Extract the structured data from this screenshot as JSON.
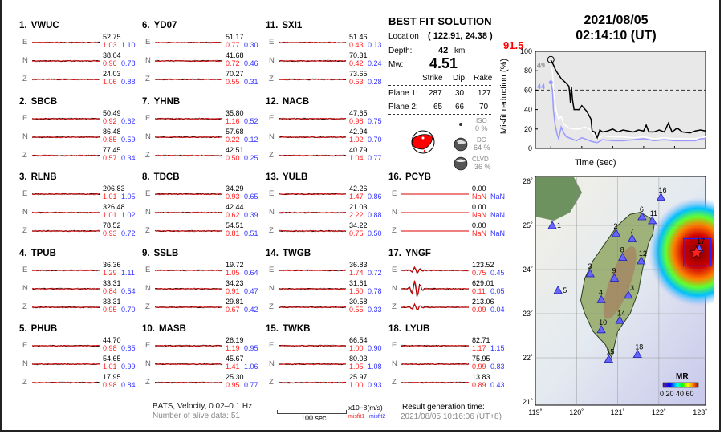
{
  "stations": [
    {
      "num": "1.",
      "name": "VWUC",
      "comps": [
        {
          "label": "E",
          "amp": "52.75",
          "m1": "1.03",
          "m2": "1.10"
        },
        {
          "label": "N",
          "amp": "38.04",
          "m1": "0.96",
          "m2": "0.78"
        },
        {
          "label": "Z",
          "amp": "24.03",
          "m1": "1.06",
          "m2": "0.88"
        }
      ]
    },
    {
      "num": "2.",
      "name": "SBCB",
      "comps": [
        {
          "label": "E",
          "amp": "50.49",
          "m1": "0.92",
          "m2": "0.62"
        },
        {
          "label": "N",
          "amp": "86.48",
          "m1": "0.85",
          "m2": "0.59"
        },
        {
          "label": "Z",
          "amp": "77.45",
          "m1": "0.57",
          "m2": "0.34"
        }
      ]
    },
    {
      "num": "3.",
      "name": "RLNB",
      "comps": [
        {
          "label": "E",
          "amp": "206.83",
          "m1": "1.01",
          "m2": "1.05"
        },
        {
          "label": "N",
          "amp": "326.48",
          "m1": "1.01",
          "m2": "1.02"
        },
        {
          "label": "Z",
          "amp": "78.52",
          "m1": "0.93",
          "m2": "0.72"
        }
      ]
    },
    {
      "num": "4.",
      "name": "TPUB",
      "comps": [
        {
          "label": "E",
          "amp": "36.36",
          "m1": "1.29",
          "m2": "1.11"
        },
        {
          "label": "N",
          "amp": "33.31",
          "m1": "0.84",
          "m2": "0.54"
        },
        {
          "label": "Z",
          "amp": "33.31",
          "m1": "0.95",
          "m2": "0.70"
        }
      ]
    },
    {
      "num": "5.",
      "name": "PHUB",
      "comps": [
        {
          "label": "E",
          "amp": "44.70",
          "m1": "0.98",
          "m2": "0.85"
        },
        {
          "label": "N",
          "amp": "54.65",
          "m1": "1.01",
          "m2": "0.99"
        },
        {
          "label": "Z",
          "amp": "17.95",
          "m1": "0.98",
          "m2": "0.84"
        }
      ]
    },
    {
      "num": "6.",
      "name": "YD07",
      "comps": [
        {
          "label": "E",
          "amp": "51.17",
          "m1": "0.77",
          "m2": "0.30"
        },
        {
          "label": "N",
          "amp": "41.68",
          "m1": "0.72",
          "m2": "0.46"
        },
        {
          "label": "Z",
          "amp": "70.27",
          "m1": "0.55",
          "m2": "0.31"
        }
      ]
    },
    {
      "num": "7.",
      "name": "YHNB",
      "comps": [
        {
          "label": "E",
          "amp": "35.80",
          "m1": "1.16",
          "m2": "0.52"
        },
        {
          "label": "N",
          "amp": "57.68",
          "m1": "0.22",
          "m2": "0.12"
        },
        {
          "label": "Z",
          "amp": "42.51",
          "m1": "0.50",
          "m2": "0.25"
        }
      ]
    },
    {
      "num": "8.",
      "name": "TDCB",
      "comps": [
        {
          "label": "E",
          "amp": "34.29",
          "m1": "0.93",
          "m2": "0.65"
        },
        {
          "label": "N",
          "amp": "42.44",
          "m1": "0.62",
          "m2": "0.39"
        },
        {
          "label": "Z",
          "amp": "54.51",
          "m1": "0.81",
          "m2": "0.51"
        }
      ]
    },
    {
      "num": "9.",
      "name": "SSLB",
      "comps": [
        {
          "label": "E",
          "amp": "19.72",
          "m1": "1.05",
          "m2": "0.64"
        },
        {
          "label": "N",
          "amp": "34.23",
          "m1": "0.91",
          "m2": "0.47"
        },
        {
          "label": "Z",
          "amp": "29.81",
          "m1": "0.67",
          "m2": "0.42"
        }
      ]
    },
    {
      "num": "10.",
      "name": "MASB",
      "comps": [
        {
          "label": "E",
          "amp": "26.19",
          "m1": "1.19",
          "m2": "0.95"
        },
        {
          "label": "N",
          "amp": "45.67",
          "m1": "1.41",
          "m2": "1.06"
        },
        {
          "label": "Z",
          "amp": "25.30",
          "m1": "0.95",
          "m2": "0.77"
        }
      ]
    },
    {
      "num": "11.",
      "name": "SXI1",
      "comps": [
        {
          "label": "E",
          "amp": "51.46",
          "m1": "0.43",
          "m2": "0.13"
        },
        {
          "label": "N",
          "amp": "70.31",
          "m1": "0.42",
          "m2": "0.24"
        },
        {
          "label": "Z",
          "amp": "73.65",
          "m1": "0.63",
          "m2": "0.28"
        }
      ]
    },
    {
      "num": "12.",
      "name": "NACB",
      "comps": [
        {
          "label": "E",
          "amp": "47.65",
          "m1": "0.98",
          "m2": "0.75"
        },
        {
          "label": "N",
          "amp": "42.94",
          "m1": "1.02",
          "m2": "0.70"
        },
        {
          "label": "Z",
          "amp": "40.79",
          "m1": "1.04",
          "m2": "0.77"
        }
      ]
    },
    {
      "num": "13.",
      "name": "YULB",
      "comps": [
        {
          "label": "E",
          "amp": "42.26",
          "m1": "1.47",
          "m2": "0.86"
        },
        {
          "label": "N",
          "amp": "21.03",
          "m1": "2.22",
          "m2": "0.88"
        },
        {
          "label": "Z",
          "amp": "34.22",
          "m1": "0.75",
          "m2": "0.50"
        }
      ]
    },
    {
      "num": "14.",
      "name": "TWGB",
      "comps": [
        {
          "label": "E",
          "amp": "36.83",
          "m1": "1.74",
          "m2": "0.72"
        },
        {
          "label": "N",
          "amp": "31.61",
          "m1": "1.50",
          "m2": "0.78"
        },
        {
          "label": "Z",
          "amp": "30.58",
          "m1": "0.55",
          "m2": "0.33"
        }
      ]
    },
    {
      "num": "15.",
      "name": "TWKB",
      "comps": [
        {
          "label": "E",
          "amp": "66.54",
          "m1": "1.00",
          "m2": "0.90"
        },
        {
          "label": "N",
          "amp": "80.03",
          "m1": "1.05",
          "m2": "1.08"
        },
        {
          "label": "Z",
          "amp": "25.97",
          "m1": "1.00",
          "m2": "0.93"
        }
      ]
    },
    {
      "num": "16.",
      "name": "PCYB",
      "comps": [
        {
          "label": "E",
          "amp": "0.00",
          "m1": "NaN",
          "m2": "NaN"
        },
        {
          "label": "N",
          "amp": "0.00",
          "m1": "NaN",
          "m2": "NaN"
        },
        {
          "label": "Z",
          "amp": "0.00",
          "m1": "NaN",
          "m2": "NaN"
        }
      ]
    },
    {
      "num": "17.",
      "name": "YNGF",
      "comps": [
        {
          "label": "E",
          "amp": "123.52",
          "m1": "0.75",
          "m2": "0.45"
        },
        {
          "label": "N",
          "amp": "629.01",
          "m1": "0.11",
          "m2": "0.05"
        },
        {
          "label": "Z",
          "amp": "213.06",
          "m1": "0.09",
          "m2": "0.04"
        }
      ]
    },
    {
      "num": "18.",
      "name": "LYUB",
      "comps": [
        {
          "label": "E",
          "amp": "82.71",
          "m1": "1.17",
          "m2": "1.15"
        },
        {
          "label": "N",
          "amp": "75.95",
          "m1": "0.99",
          "m2": "0.83"
        },
        {
          "label": "Z",
          "amp": "13.83",
          "m1": "0.89",
          "m2": "0.43"
        }
      ]
    }
  ],
  "solution": {
    "title": "BEST FIT SOLUTION",
    "location_label": "Location",
    "location_value": "( 122.91,  24.38 )",
    "depth_label": "Depth:",
    "depth_value": "42",
    "depth_unit": "km",
    "mw_label": "Mw:",
    "mw_value": "4.51",
    "headers": [
      "Strike",
      "Dip",
      "Rake"
    ],
    "planes": [
      {
        "label": "Plane 1:",
        "strike": "287",
        "dip": "30",
        "rake": "127"
      },
      {
        "label": "Plane 2:",
        "strike": "65",
        "dip": "66",
        "rake": "70"
      }
    ],
    "iso_label": "ISO",
    "iso_value": "0 %",
    "dc_label": "DC",
    "dc_value": "64 %",
    "clvd_label": "CLVD",
    "clvd_value": "36 %"
  },
  "event": {
    "date": "2021/08/05",
    "time": "02:14:10  (UT)",
    "best_vr": "91.5"
  },
  "chart_data": {
    "type": "line",
    "xlabel": "Time (sec)",
    "ylabel": "Misfit reduction (%)",
    "xlim": [
      -30,
      300
    ],
    "ylim": [
      0,
      100
    ],
    "xticks": [
      0,
      60,
      120,
      180,
      240,
      300
    ],
    "yticks": [
      0,
      20,
      40,
      60,
      80,
      100
    ],
    "threshold": 60,
    "annotations": {
      "peak": "91.5",
      "gray_label": "49",
      "blue_label": "44"
    },
    "series": [
      {
        "color": "#000000",
        "x": [
          0,
          5,
          10,
          20,
          30,
          35,
          37,
          38,
          40,
          42,
          45,
          55,
          60,
          70,
          78,
          80,
          85,
          90,
          95,
          100,
          110,
          120,
          130,
          140,
          150,
          160,
          170,
          180,
          185,
          190,
          200,
          210,
          220,
          228,
          235,
          245,
          255,
          270,
          280,
          290,
          300
        ],
        "y": [
          91,
          86,
          80,
          72,
          67,
          64,
          55,
          47,
          63,
          50,
          40,
          40,
          44,
          38,
          30,
          18,
          17,
          11,
          19,
          17,
          18,
          20,
          17,
          19,
          18,
          17,
          19,
          18,
          24,
          17,
          17,
          19,
          17,
          26,
          17,
          21,
          17,
          16,
          18,
          19,
          18
        ]
      },
      {
        "color": "#ffffff",
        "x": [
          0,
          3,
          6,
          10,
          15,
          20,
          25,
          35,
          45,
          55,
          65,
          75,
          80,
          90,
          100,
          120,
          140,
          160,
          180,
          200,
          220,
          240,
          260,
          280,
          300
        ],
        "y": [
          85,
          80,
          55,
          40,
          30,
          33,
          25,
          21,
          20,
          20,
          22,
          20,
          17,
          10,
          13,
          12,
          12,
          11,
          12,
          10,
          11,
          10,
          10,
          10,
          12
        ]
      },
      {
        "color": "#9999ff",
        "x": [
          0,
          3,
          5,
          8,
          12,
          15,
          20,
          25,
          30,
          40,
          50,
          60,
          70,
          80,
          90,
          100,
          120,
          140,
          160,
          180,
          200,
          220,
          240,
          260,
          280,
          290,
          300
        ],
        "y": [
          68,
          60,
          40,
          25,
          15,
          10,
          22,
          16,
          12,
          10,
          8,
          11,
          9,
          7,
          6,
          9,
          8,
          8,
          9,
          10,
          8,
          9,
          8,
          8,
          8,
          10,
          10
        ]
      }
    ]
  },
  "map": {
    "lon_ticks": [
      "119˚",
      "120˚",
      "121˚",
      "122˚",
      "123˚"
    ],
    "lat_ticks": [
      "26˚",
      "25˚",
      "24˚",
      "23˚",
      "22˚",
      "21˚"
    ],
    "colorbar_title": "MR",
    "colorbar_ticks": "0 20 40 60",
    "epicenter": {
      "lon": 122.91,
      "lat": 24.38
    },
    "stations": [
      {
        "n": "1",
        "lon": 119.41,
        "lat": 25.0
      },
      {
        "n": "2",
        "lon": 120.96,
        "lat": 24.82
      },
      {
        "n": "3",
        "lon": 120.33,
        "lat": 23.91
      },
      {
        "n": "4",
        "lon": 120.6,
        "lat": 23.32
      },
      {
        "n": "5",
        "lon": 119.55,
        "lat": 23.53
      },
      {
        "n": "6",
        "lon": 121.59,
        "lat": 25.2
      },
      {
        "n": "7",
        "lon": 121.35,
        "lat": 24.7
      },
      {
        "n": "8",
        "lon": 121.12,
        "lat": 24.28
      },
      {
        "n": "9",
        "lon": 120.92,
        "lat": 23.81
      },
      {
        "n": "10",
        "lon": 120.6,
        "lat": 22.64
      },
      {
        "n": "11",
        "lon": 121.84,
        "lat": 25.11
      },
      {
        "n": "12",
        "lon": 121.57,
        "lat": 24.2
      },
      {
        "n": "13",
        "lon": 121.26,
        "lat": 23.42
      },
      {
        "n": "14",
        "lon": 121.05,
        "lat": 22.85
      },
      {
        "n": "15",
        "lon": 120.78,
        "lat": 21.97
      },
      {
        "n": "16",
        "lon": 122.05,
        "lat": 25.64
      },
      {
        "n": "17",
        "lon": 122.98,
        "lat": 24.47
      },
      {
        "n": "18",
        "lon": 121.48,
        "lat": 22.08
      }
    ]
  },
  "footer": {
    "network": "BATS, Velocity, 0.02–0.1 Hz",
    "alive": "Number of alive data: 51",
    "scale": "100 sec",
    "units": "x10−8(m/s)",
    "misfit1": "misfit1",
    "misfit2": "misfit2",
    "gen_label": "Result generation time:",
    "gen_time": "2021/08/05 10:16:06 (UT+8)"
  },
  "colors": {
    "misfit1": "#ff2222",
    "misfit2": "#3333ff",
    "vr": "#ff0000"
  }
}
